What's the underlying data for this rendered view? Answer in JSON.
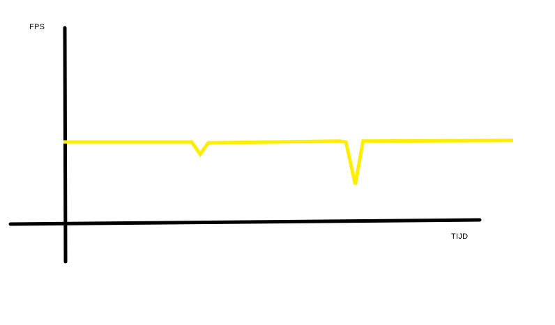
{
  "chart_data": {
    "type": "line",
    "title": "",
    "xlabel": "TIJD",
    "ylabel": "FPS",
    "grid": false,
    "legend": "none",
    "ticks": false,
    "xlim": [
      0,
      100
    ],
    "ylim": [
      0,
      100
    ],
    "series": [
      {
        "color": "#ffee00",
        "x": [
          0,
          28.5,
          30.4,
          32.2,
          61.3,
          62.8,
          64.9,
          66.6,
          100
        ],
        "y": [
          100,
          100,
          85,
          99,
          101,
          100,
          48,
          101,
          102
        ]
      }
    ],
    "axis_color": "#000000"
  }
}
